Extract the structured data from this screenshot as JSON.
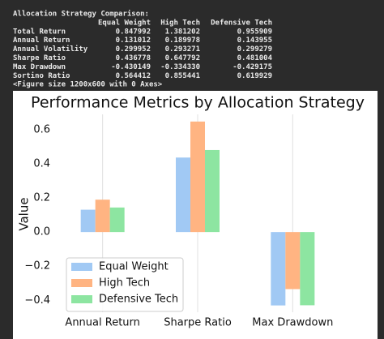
{
  "console": {
    "title": "Allocation Strategy Comparison:",
    "header": [
      "Equal Weight",
      "High Tech",
      "Defensive Tech"
    ],
    "rows": [
      [
        "Total Return",
        "0.847992",
        "1.381202",
        "0.955909"
      ],
      [
        "Annual Return",
        "0.131012",
        "0.189978",
        "0.143955"
      ],
      [
        "Annual Volatility",
        "0.299952",
        "0.293271",
        "0.299279"
      ],
      [
        "Sharpe Ratio",
        "0.436778",
        "0.647792",
        "0.481004"
      ],
      [
        "Max Drawdown",
        "-0.430149",
        "-0.334330",
        "-0.429175"
      ],
      [
        "Sortino Ratio",
        "0.564412",
        "0.855441",
        "0.619929"
      ]
    ],
    "footer": "<Figure size 1200x600 with 0 Axes>"
  },
  "chart_data": {
    "type": "bar",
    "title": "Performance Metrics by Allocation Strategy",
    "y_label": "Value",
    "categories": [
      "Annual Return",
      "Sharpe Ratio",
      "Max Drawdown"
    ],
    "series": [
      {
        "name": "Equal Weight",
        "color": "#a1c9f4",
        "values": [
          0.131012,
          0.436778,
          -0.430149
        ]
      },
      {
        "name": "High Tech",
        "color": "#ffb482",
        "values": [
          0.189978,
          0.647792,
          -0.33433
        ]
      },
      {
        "name": "Defensive Tech",
        "color": "#8de5a1",
        "values": [
          0.143955,
          0.481004,
          -0.429175
        ]
      }
    ],
    "ylim": [
      -0.47,
      0.69
    ],
    "yticks": [
      {
        "value": -0.4,
        "label": "−0.4"
      },
      {
        "value": -0.2,
        "label": "−0.2"
      },
      {
        "value": 0,
        "label": "0.0"
      },
      0.2,
      0.4,
      0.6
    ],
    "grid": "x",
    "legend": "lower left"
  }
}
